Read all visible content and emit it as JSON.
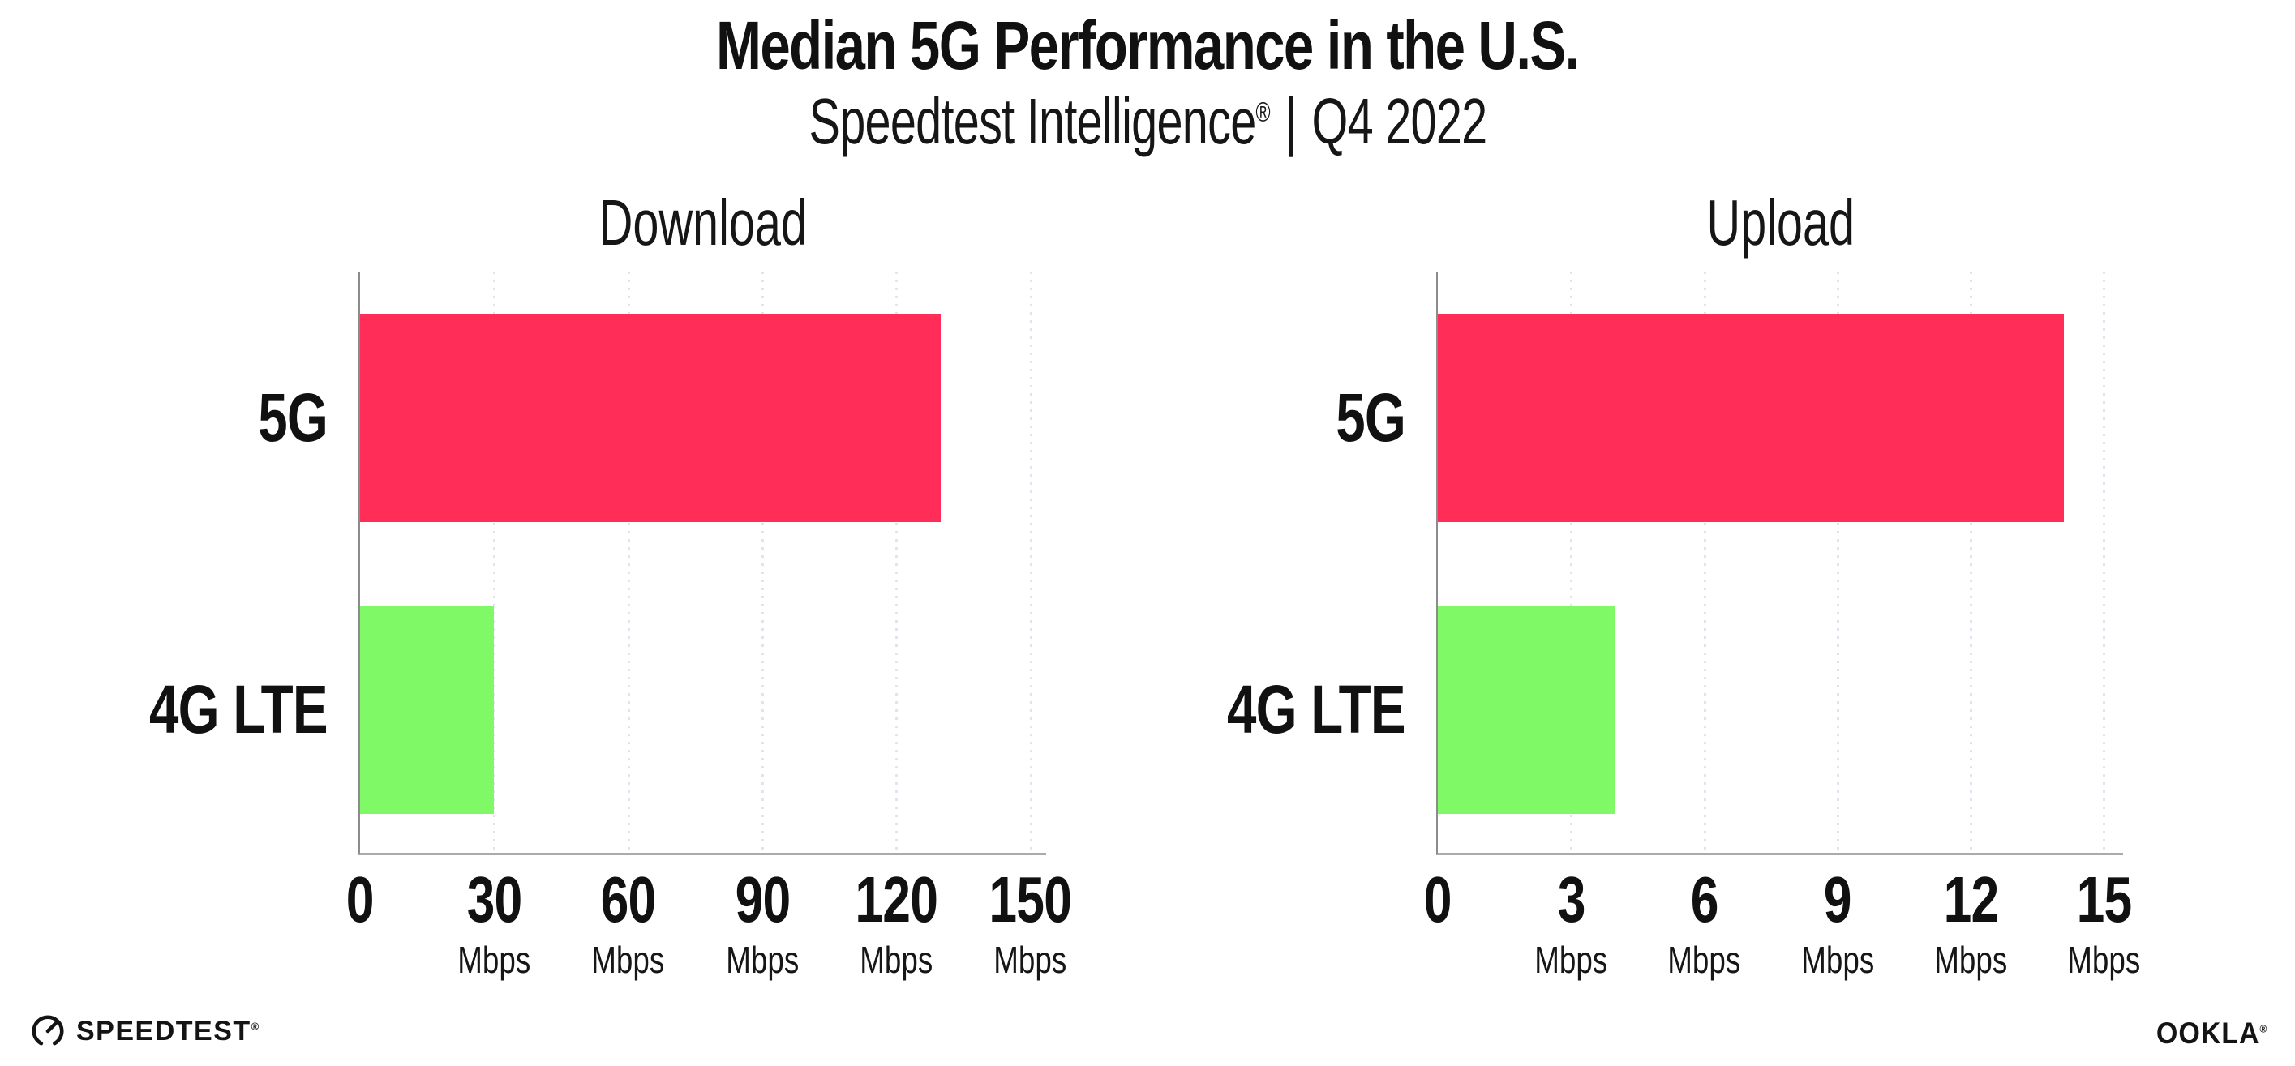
{
  "header": {
    "title": "Median 5G Performance in the U.S.",
    "subtitle": {
      "brand": "Speedtest Intelligence",
      "registered_mark": "®",
      "separator": "|",
      "period": "Q4 2022"
    }
  },
  "chart_data": [
    {
      "type": "bar",
      "orientation": "horizontal",
      "title": "Download",
      "categories": [
        "5G",
        "4G LTE"
      ],
      "values": [
        130,
        30
      ],
      "unit": "Mbps",
      "xticks": [
        0,
        30,
        60,
        90,
        120,
        150
      ],
      "xlim": [
        0,
        153.5
      ],
      "bar_colors": [
        "#ff2d58",
        "#7ffa66"
      ],
      "grid": "dotted vertical gridlines at each tick",
      "legend": "none"
    },
    {
      "type": "bar",
      "orientation": "horizontal",
      "title": "Upload",
      "categories": [
        "5G",
        "4G LTE"
      ],
      "values": [
        14.1,
        4
      ],
      "unit": "Mbps",
      "xticks": [
        0,
        3,
        6,
        9,
        12,
        15
      ],
      "xlim": [
        0,
        15.43
      ],
      "bar_colors": [
        "#ff2d58",
        "#7ffa66"
      ],
      "grid": "dotted vertical gridlines at each tick",
      "legend": "none"
    }
  ],
  "footer": {
    "speedtest_label": "SPEEDTEST",
    "speedtest_mark": "®",
    "ookla_label": "OOKLA",
    "ookla_mark": "®"
  },
  "colors": {
    "background": "#ffffff",
    "bar_5g": "#ff2d58",
    "bar_4g_lte": "#7ffa66",
    "gridline": "#e3e3ef",
    "axis_left": "#8c8c8c",
    "axis_bottom": "#ababab",
    "text": "#111111"
  }
}
